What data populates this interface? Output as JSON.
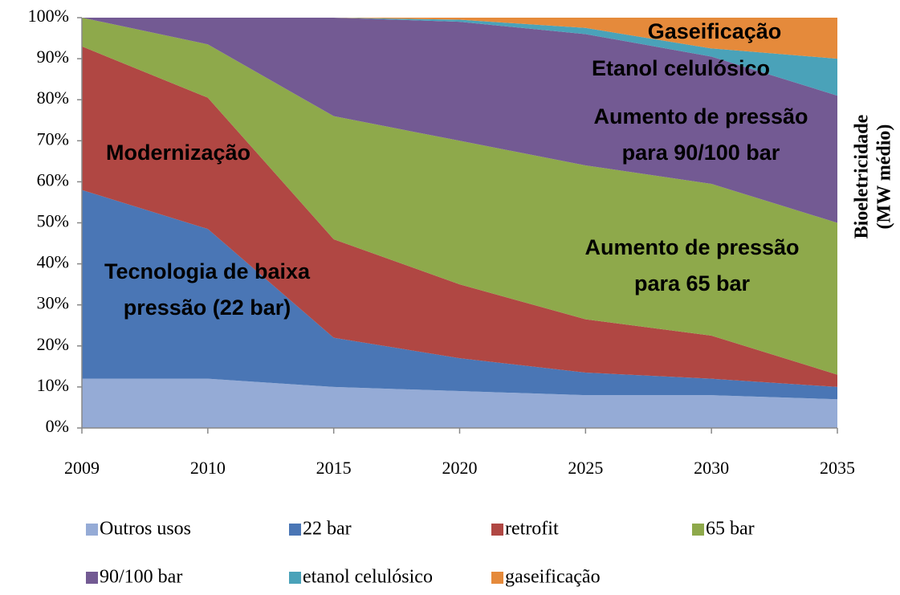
{
  "chart_data": {
    "type": "stacked-area",
    "y2_label": [
      "Bioeletricidade",
      "(MW médio)"
    ],
    "categories": [
      "2009",
      "2010",
      "2015",
      "2020",
      "2025",
      "2030",
      "2035"
    ],
    "series": [
      {
        "name": "Outros usos",
        "color": "#95abd6",
        "values": [
          12,
          12,
          10,
          9,
          8,
          8,
          7
        ]
      },
      {
        "name": "22 bar",
        "color": "#4a76b5",
        "values": [
          46,
          36.5,
          12,
          8,
          5.5,
          4,
          3
        ]
      },
      {
        "name": "retrofit",
        "color": "#b04743",
        "values": [
          35,
          32,
          24,
          18,
          13,
          10.5,
          3
        ]
      },
      {
        "name": "65 bar",
        "color": "#8ea94b",
        "values": [
          7,
          13,
          30,
          35,
          37.5,
          37,
          37
        ]
      },
      {
        "name": "90/100 bar",
        "color": "#735a93",
        "values": [
          0,
          6.5,
          24,
          29,
          32,
          31,
          31
        ]
      },
      {
        "name": "etanol celulósico",
        "color": "#4aa2b9",
        "values": [
          0,
          0,
          0,
          0.5,
          1.5,
          2,
          9
        ]
      },
      {
        "name": "gaseificação",
        "color": "#e58a3b",
        "values": [
          0,
          0,
          0,
          0.5,
          2.5,
          7.5,
          10
        ]
      }
    ],
    "ylim": [
      0,
      100
    ],
    "yticks": [
      {
        "value": 0,
        "label": "0%"
      },
      {
        "value": 10,
        "label": "10%"
      },
      {
        "value": 20,
        "label": "20%"
      },
      {
        "value": 30,
        "label": "30%"
      },
      {
        "value": 40,
        "label": "40%"
      },
      {
        "value": 50,
        "label": "50%"
      },
      {
        "value": 60,
        "label": "60%"
      },
      {
        "value": 70,
        "label": "70%"
      },
      {
        "value": 80,
        "label": "80%"
      },
      {
        "value": 90,
        "label": "90%"
      },
      {
        "value": 100,
        "label": "100%"
      }
    ],
    "annotations": [
      [
        "Modernização"
      ],
      [
        "Tecnologia de baixa",
        "pressão (22 bar)"
      ],
      [
        "Aumento de pressão",
        "para 65 bar"
      ],
      [
        "Aumento de pressão",
        "para 90/100 bar"
      ],
      [
        "Etanol celulósico"
      ],
      [
        "Gaseificação"
      ]
    ]
  }
}
